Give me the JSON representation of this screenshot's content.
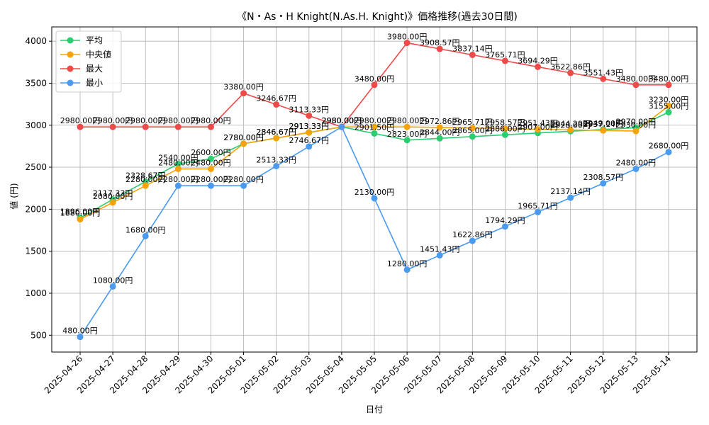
{
  "chart_data": {
    "type": "line",
    "title": "《N・As・H Knight(N.As.H. Knight)》価格推移(過去30日間)",
    "xlabel": "日付",
    "ylabel": "値 (円)",
    "ylim": [
      300,
      4170
    ],
    "y_ticks": [
      500,
      1000,
      1500,
      2000,
      2500,
      3000,
      3500,
      4000
    ],
    "grid": true,
    "legend_position": "top-left",
    "value_suffix": "円",
    "categories": [
      "2025-04-26",
      "2025-04-27",
      "2025-04-28",
      "2025-04-29",
      "2025-04-30",
      "2025-05-01",
      "2025-05-02",
      "2025-05-03",
      "2025-05-04",
      "2025-05-05",
      "2025-05-06",
      "2025-05-07",
      "2025-05-08",
      "2025-05-09",
      "2025-05-10",
      "2025-05-11",
      "2025-05-12",
      "2025-05-13",
      "2025-05-14"
    ],
    "series": [
      {
        "name": "平均",
        "color": "#2ecc71",
        "values": [
          1896,
          2117.33,
          2328.67,
          2540,
          2600,
          2780,
          2846.67,
          2913.33,
          2980,
          2901.5,
          2823,
          2844,
          2865,
          2886,
          2907,
          2928,
          2949,
          2970,
          3155
        ]
      },
      {
        "name": "中央値",
        "color": "#f5a30a",
        "values": [
          1880,
          2080,
          2280,
          2480,
          2480,
          2780,
          2846.67,
          2913.33,
          2980,
          2980,
          2980,
          2972.86,
          2965.71,
          2958.57,
          2951.43,
          2944.29,
          2937.14,
          2930,
          3230
        ]
      },
      {
        "name": "最大",
        "color": "#ef4a4a",
        "values": [
          2980,
          2980,
          2980,
          2980,
          2980,
          3380,
          3246.67,
          3113.33,
          2980,
          3480,
          3980,
          3908.57,
          3837.14,
          3765.71,
          3694.29,
          3622.86,
          3551.43,
          3480,
          3480
        ]
      },
      {
        "name": "最小",
        "color": "#4a9af0",
        "values": [
          480,
          1080,
          1680,
          2280,
          2280,
          2280,
          2513.33,
          2746.67,
          2980,
          2130,
          1280,
          1451.43,
          1622.86,
          1794.29,
          1965.71,
          2137.14,
          2308.57,
          2480,
          2680
        ]
      }
    ]
  }
}
